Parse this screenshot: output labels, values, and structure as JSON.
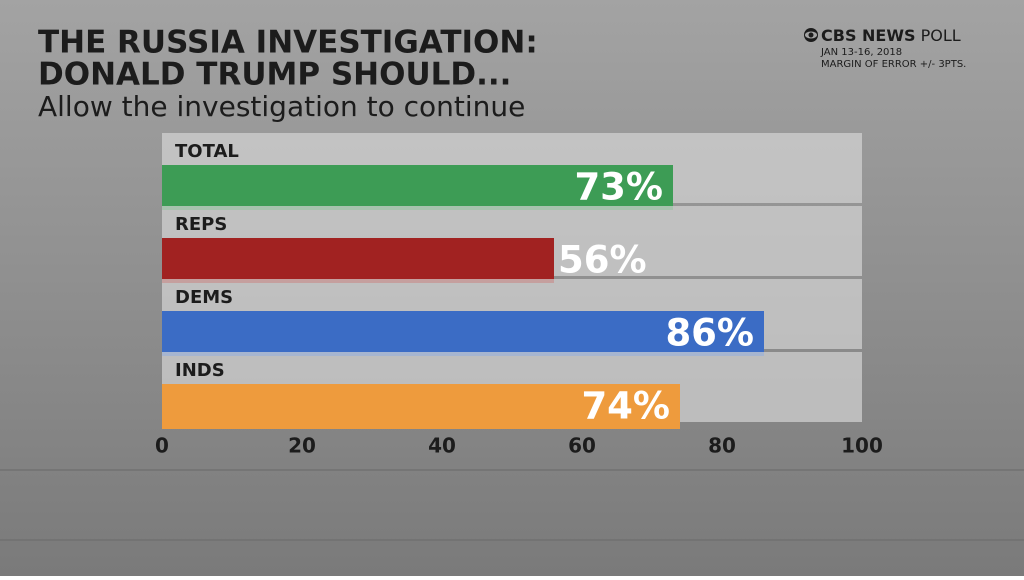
{
  "chart_data": {
    "type": "hbar",
    "title_lines": [
      "THE RUSSIA INVESTIGATION:",
      "DONALD TRUMP SHOULD..."
    ],
    "subtitle": "Allow the investigation to continue",
    "source": {
      "brand": "CBS NEWS",
      "name": "POLL",
      "dates": "JAN 13-16, 2018",
      "margin": "MARGIN OF ERROR +/- 3PTS."
    },
    "categories": [
      "TOTAL",
      "REPS",
      "DEMS",
      "INDS"
    ],
    "values": [
      73,
      56,
      86,
      74
    ],
    "value_labels": [
      "73%",
      "56%",
      "86%",
      "74%"
    ],
    "colors": [
      "#3d9c55",
      "#a12221",
      "#3b6cc5",
      "#ee9b3d"
    ],
    "xlim": [
      0,
      100
    ],
    "xticks": [
      0,
      20,
      40,
      60,
      80,
      100
    ],
    "grid": false
  }
}
